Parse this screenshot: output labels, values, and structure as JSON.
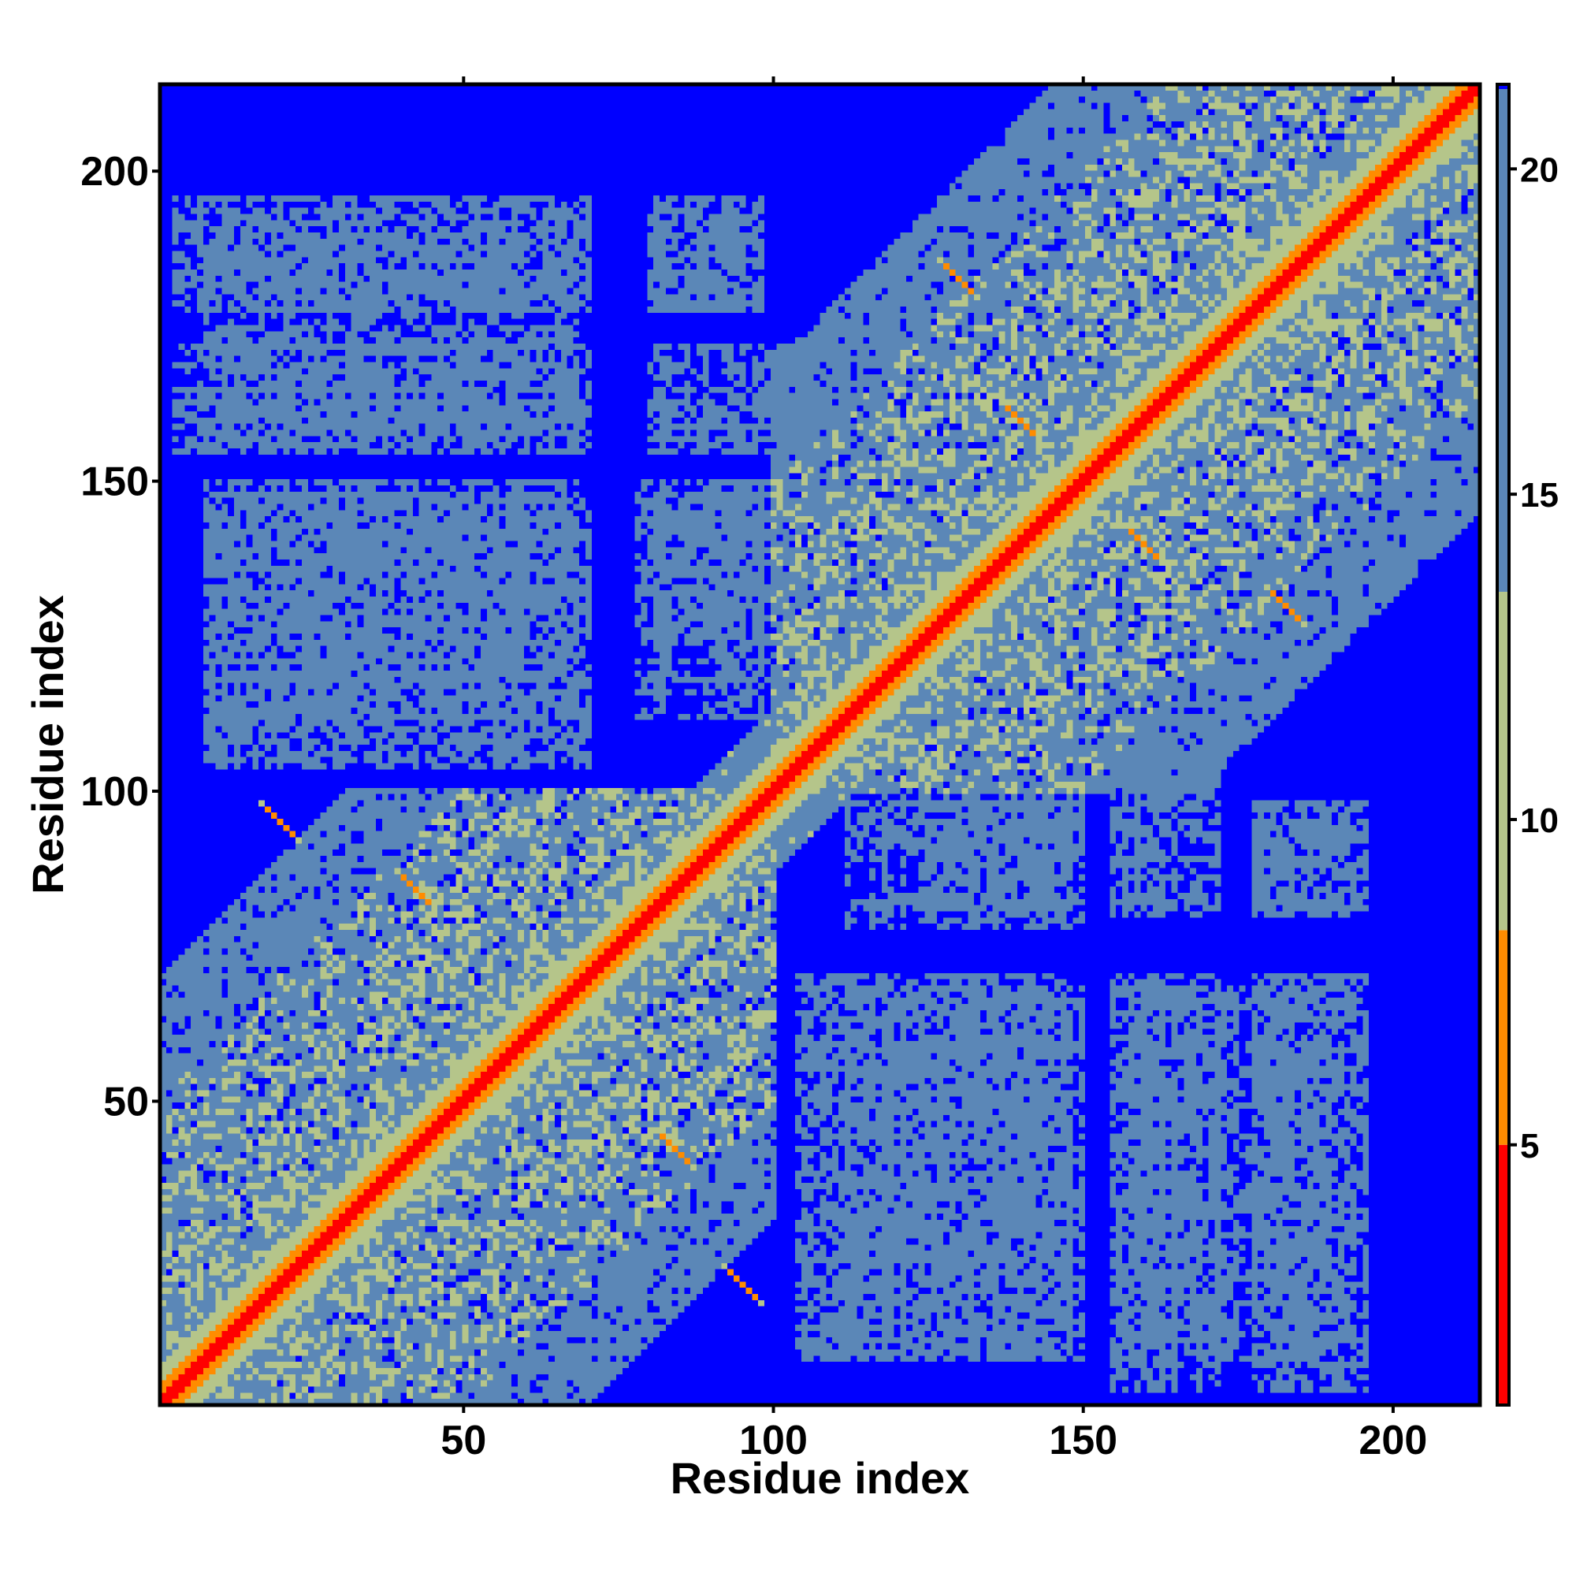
{
  "chart_data": {
    "type": "heatmap",
    "title": "",
    "xlabel": "Residue index",
    "ylabel": "Residue index",
    "xlim": [
      1,
      214
    ],
    "ylim": [
      1,
      214
    ],
    "n_residues": 214,
    "x_ticks": [
      50,
      100,
      150,
      200
    ],
    "y_ticks": [
      50,
      100,
      150,
      200
    ],
    "grid": false,
    "colorbar": {
      "ticks": [
        5,
        10,
        15,
        20
      ],
      "range": [
        1,
        21.3
      ],
      "palette": [
        {
          "from": 1.0,
          "to": 5.0,
          "color": "#ff0000"
        },
        {
          "from": 5.0,
          "to": 8.3,
          "color": "#ff8c00"
        },
        {
          "from": 8.3,
          "to": 13.5,
          "color": "#b5c58a"
        },
        {
          "from": 13.5,
          "to": 21.3,
          "color": "#5b87b7"
        }
      ],
      "cap_color": "#0000ff"
    },
    "colors": {
      "background": "#0000ff",
      "far_contact": "#5b87b7",
      "mid_contact": "#b5c58a",
      "near_contact": "#ff8c00",
      "closest": "#ff0000"
    },
    "domains": [
      {
        "from": 1,
        "to": 100
      },
      {
        "from": 100,
        "to": 214
      }
    ],
    "contact_blocks": [
      {
        "x": [
          3,
          70
        ],
        "y": [
          178,
          196
        ],
        "value": 18
      },
      {
        "x": [
          80,
          98
        ],
        "y": [
          178,
          196
        ],
        "value": 18
      },
      {
        "x": [
          3,
          70
        ],
        "y": [
          155,
          172
        ],
        "value": 18
      },
      {
        "x": [
          80,
          112
        ],
        "y": [
          155,
          172
        ],
        "value": 18
      },
      {
        "x": [
          8,
          70
        ],
        "y": [
          104,
          148
        ],
        "value": 18
      },
      {
        "x": [
          80,
          98
        ],
        "y": [
          125,
          148
        ],
        "value": 18
      },
      {
        "x": [
          112,
          150
        ],
        "y": [
          78,
          100
        ],
        "value": 18
      },
      {
        "x": [
          178,
          190
        ],
        "y": [
          80,
          95
        ],
        "value": 18
      },
      {
        "x": [
          112,
          150
        ],
        "y": [
          8,
          68
        ],
        "value": 18
      },
      {
        "x": [
          158,
          190
        ],
        "y": [
          8,
          68
        ],
        "value": 18
      }
    ],
    "hotspots": [
      {
        "x": 130,
        "y": 183,
        "value": 6
      },
      {
        "x": 42,
        "y": 84,
        "value": 6
      },
      {
        "x": 183,
        "y": 130,
        "value": 6
      },
      {
        "x": 84,
        "y": 42,
        "value": 6
      },
      {
        "x": 140,
        "y": 160,
        "value": 6
      },
      {
        "x": 160,
        "y": 140,
        "value": 6
      },
      {
        "x": 20,
        "y": 95,
        "value": 6
      },
      {
        "x": 95,
        "y": 20,
        "value": 6
      }
    ]
  }
}
